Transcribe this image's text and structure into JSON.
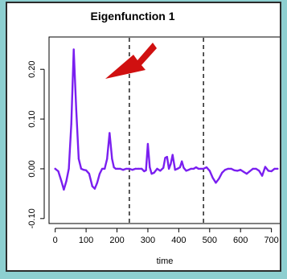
{
  "chart_data": {
    "type": "line",
    "title": "Eigenfunction 1",
    "xlabel": "time",
    "ylabel": "",
    "xlim": [
      -20,
      740
    ],
    "ylim": [
      -0.11,
      0.265
    ],
    "xticks": [
      0,
      100,
      200,
      300,
      400,
      500,
      600,
      700
    ],
    "yticks": [
      -0.1,
      0.0,
      0.1,
      0.2
    ],
    "ytick_labels": [
      "-0.10",
      "0.00",
      "0.10",
      "0.20"
    ],
    "vlines": [
      240,
      480
    ],
    "line_color": "#7a1ff0",
    "arrow_color": "#d01010",
    "series": [
      {
        "x": [
          0,
          10,
          20,
          28,
          36,
          44,
          52,
          60,
          68,
          76,
          84,
          92,
          100,
          110,
          120,
          128,
          136,
          144,
          152,
          160,
          168,
          176,
          184,
          190,
          196,
          202,
          210,
          220,
          230,
          240,
          250,
          260,
          270,
          280,
          288,
          294,
          300,
          306,
          312,
          320,
          330,
          340,
          350,
          356,
          362,
          368,
          374,
          380,
          388,
          396,
          404,
          410,
          416,
          424,
          432,
          440,
          448,
          456,
          464,
          472,
          480,
          490,
          500,
          510,
          520,
          530,
          540,
          550,
          560,
          570,
          580,
          590,
          600,
          610,
          620,
          630,
          640,
          650,
          660,
          670,
          680,
          690,
          700,
          710,
          720
        ],
        "y": [
          0.0,
          -0.005,
          -0.025,
          -0.042,
          -0.025,
          0.0,
          0.09,
          0.24,
          0.12,
          0.02,
          0.0,
          -0.002,
          -0.003,
          -0.01,
          -0.035,
          -0.04,
          -0.028,
          -0.01,
          0.0,
          0.0,
          0.02,
          0.072,
          0.02,
          0.003,
          0.0,
          0.0,
          0.0,
          -0.002,
          0.0,
          0.0,
          -0.002,
          0.0,
          0.0,
          0.0,
          -0.005,
          -0.003,
          0.05,
          0.003,
          -0.01,
          -0.008,
          0.0,
          -0.004,
          0.002,
          0.022,
          0.024,
          0.0,
          0.01,
          0.028,
          -0.002,
          0.0,
          0.003,
          0.015,
          0.002,
          -0.004,
          -0.002,
          0.0,
          0.0,
          0.003,
          0.0,
          0.0,
          0.0,
          0.003,
          -0.004,
          -0.018,
          -0.028,
          -0.02,
          -0.008,
          -0.002,
          0.0,
          0.0,
          -0.003,
          -0.004,
          -0.002,
          -0.006,
          -0.01,
          -0.005,
          0.0,
          0.0,
          -0.004,
          -0.014,
          0.004,
          -0.004,
          -0.005,
          0.0,
          0.0
        ]
      }
    ]
  }
}
